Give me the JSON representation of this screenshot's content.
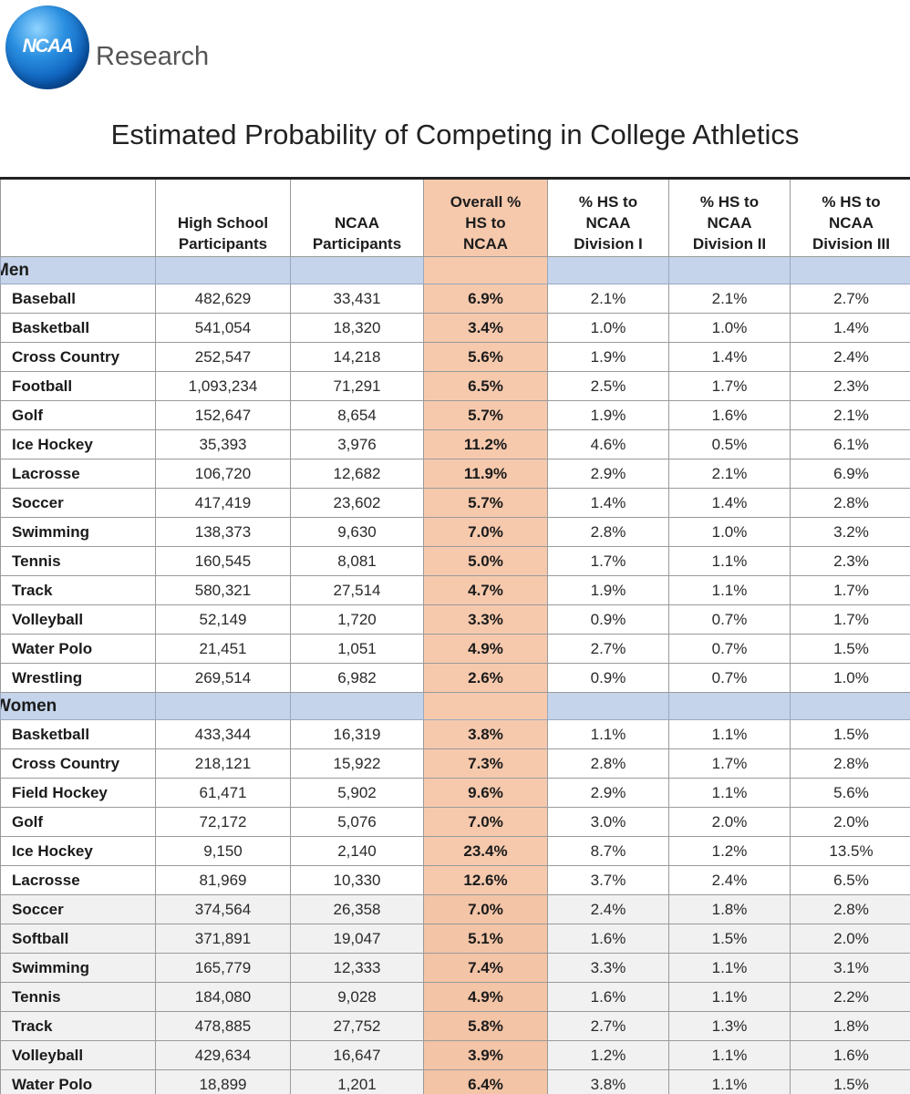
{
  "logo": {
    "word": "NCAA",
    "suffix": "Research"
  },
  "title": "Estimated Probability of Competing in College Athletics",
  "columns": [
    "",
    "High School\nParticipants",
    "NCAA\nParticipants",
    "Overall %\nHS to\nNCAA",
    "% HS to\nNCAA\nDivision I",
    "% HS to\nNCAA\nDivision II",
    "% HS to\nNCAA\nDivision III"
  ],
  "sections": [
    {
      "label": "Men",
      "rows": [
        [
          "Baseball",
          "482,629",
          "33,431",
          "6.9%",
          "2.1%",
          "2.1%",
          "2.7%"
        ],
        [
          "Basketball",
          "541,054",
          "18,320",
          "3.4%",
          "1.0%",
          "1.0%",
          "1.4%"
        ],
        [
          "Cross Country",
          "252,547",
          "14,218",
          "5.6%",
          "1.9%",
          "1.4%",
          "2.4%"
        ],
        [
          "Football",
          "1,093,234",
          "71,291",
          "6.5%",
          "2.5%",
          "1.7%",
          "2.3%"
        ],
        [
          "Golf",
          "152,647",
          "8,654",
          "5.7%",
          "1.9%",
          "1.6%",
          "2.1%"
        ],
        [
          "Ice Hockey",
          "35,393",
          "3,976",
          "11.2%",
          "4.6%",
          "0.5%",
          "6.1%"
        ],
        [
          "Lacrosse",
          "106,720",
          "12,682",
          "11.9%",
          "2.9%",
          "2.1%",
          "6.9%"
        ],
        [
          "Soccer",
          "417,419",
          "23,602",
          "5.7%",
          "1.4%",
          "1.4%",
          "2.8%"
        ],
        [
          "Swimming",
          "138,373",
          "9,630",
          "7.0%",
          "2.8%",
          "1.0%",
          "3.2%"
        ],
        [
          "Tennis",
          "160,545",
          "8,081",
          "5.0%",
          "1.7%",
          "1.1%",
          "2.3%"
        ],
        [
          "Track",
          "580,321",
          "27,514",
          "4.7%",
          "1.9%",
          "1.1%",
          "1.7%"
        ],
        [
          "Volleyball",
          "52,149",
          "1,720",
          "3.3%",
          "0.9%",
          "0.7%",
          "1.7%"
        ],
        [
          "Water Polo",
          "21,451",
          "1,051",
          "4.9%",
          "2.7%",
          "0.7%",
          "1.5%"
        ],
        [
          "Wrestling",
          "269,514",
          "6,982",
          "2.6%",
          "0.9%",
          "0.7%",
          "1.0%"
        ]
      ]
    },
    {
      "label": "Women",
      "rows": [
        [
          "Basketball",
          "433,344",
          "16,319",
          "3.8%",
          "1.1%",
          "1.1%",
          "1.5%"
        ],
        [
          "Cross Country",
          "218,121",
          "15,922",
          "7.3%",
          "2.8%",
          "1.7%",
          "2.8%"
        ],
        [
          "Field Hockey",
          "61,471",
          "5,902",
          "9.6%",
          "2.9%",
          "1.1%",
          "5.6%"
        ],
        [
          "Golf",
          "72,172",
          "5,076",
          "7.0%",
          "3.0%",
          "2.0%",
          "2.0%"
        ],
        [
          "Ice Hockey",
          "9,150",
          "2,140",
          "23.4%",
          "8.7%",
          "1.2%",
          "13.5%"
        ],
        [
          "Lacrosse",
          "81,969",
          "10,330",
          "12.6%",
          "3.7%",
          "2.4%",
          "6.5%"
        ],
        [
          "Soccer",
          "374,564",
          "26,358",
          "7.0%",
          "2.4%",
          "1.8%",
          "2.8%"
        ],
        [
          "Softball",
          "371,891",
          "19,047",
          "5.1%",
          "1.6%",
          "1.5%",
          "2.0%"
        ],
        [
          "Swimming",
          "165,779",
          "12,333",
          "7.4%",
          "3.3%",
          "1.1%",
          "3.1%"
        ],
        [
          "Tennis",
          "184,080",
          "9,028",
          "4.9%",
          "1.6%",
          "1.1%",
          "2.2%"
        ],
        [
          "Track",
          "478,885",
          "27,752",
          "5.8%",
          "2.7%",
          "1.3%",
          "1.8%"
        ],
        [
          "Volleyball",
          "429,634",
          "16,647",
          "3.9%",
          "1.2%",
          "1.1%",
          "1.6%"
        ],
        [
          "Water Polo",
          "18,899",
          "1,201",
          "6.4%",
          "3.8%",
          "1.1%",
          "1.5%"
        ]
      ]
    }
  ],
  "colors": {
    "highlight_column": "#f6c9ad",
    "section_row": "#c5d4ea",
    "logo_blue": "#0b5cb8"
  }
}
